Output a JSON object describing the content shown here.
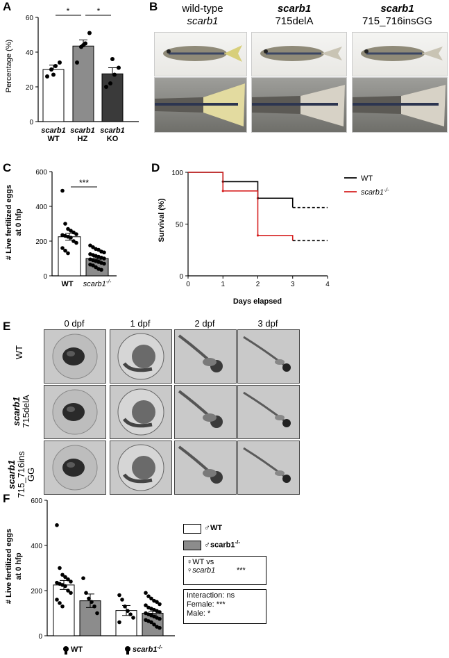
{
  "panels": {
    "a": {
      "letter": "A",
      "ylabel": "Percentage (%)",
      "yticks": [
        "0",
        "20",
        "40",
        "60"
      ],
      "groups": [
        {
          "line1": "scarb1",
          "line2": "WT"
        },
        {
          "line1": "scarb1",
          "line2": "HZ"
        },
        {
          "line1": "scarb1",
          "line2": "KO"
        }
      ],
      "sig": [
        "*",
        "*"
      ]
    },
    "b": {
      "letter": "B",
      "columns": [
        {
          "line1": "wild-type",
          "line2": "scarb1"
        },
        {
          "line1": "scarb1",
          "line2": "715delA"
        },
        {
          "line1": "scarb1",
          "line2": "715_716insGG"
        }
      ]
    },
    "c": {
      "letter": "C",
      "ylabel1": "# Live fertilized eggs",
      "ylabel2": "at 0 hfp",
      "yticks": [
        "0",
        "200",
        "400",
        "600"
      ],
      "xlabels": [
        "WT",
        "scarb1",
        "-/-"
      ],
      "sig": "***"
    },
    "d": {
      "letter": "D",
      "ylabel": "Survival  (%)",
      "xlabel": "Days elapsed",
      "yticks": [
        "0",
        "50",
        "100"
      ],
      "xticks": [
        "0",
        "1",
        "2",
        "3",
        "4"
      ],
      "legend": [
        {
          "label": "WT",
          "sup": "",
          "color": "#000000"
        },
        {
          "label": "scarb1",
          "sup": "-/-",
          "color": "#d62020"
        }
      ]
    },
    "e": {
      "letter": "E",
      "times": [
        "0 dpf",
        "1 dpf",
        "2 dpf",
        "3 dpf"
      ],
      "rows": [
        {
          "line1": "WT",
          "line2": ""
        },
        {
          "line1": "scarb1",
          "line2": "715delA"
        },
        {
          "line1": "scarb1",
          "line2": "715_716ins",
          "line3": "GG"
        }
      ]
    },
    "f": {
      "letter": "F",
      "ylabel1": "# Live fertilized eggs",
      "ylabel2": "at 0 hfp",
      "yticks": [
        "0",
        "200",
        "400",
        "600"
      ],
      "groups": [
        {
          "label": "WT",
          "italic": false,
          "sup": ""
        },
        {
          "label": "scarb1",
          "italic": true,
          "sup": "-/-"
        }
      ],
      "legend": [
        {
          "label": "WT",
          "sup": "",
          "fill": "#ffffff"
        },
        {
          "label": "scarb1",
          "sup": "-/-",
          "fill": "#8c8c8c"
        }
      ],
      "stats1_a": "♀WT vs",
      "stats1_b": "♀scarb1",
      "stats1_sig": "***",
      "stats2": [
        "Interaction: ns",
        "Female:  ***",
        "Male: *"
      ]
    }
  },
  "chart_data": [
    {
      "type": "bar",
      "panel": "A",
      "ylabel": "Percentage (%)",
      "ylim": [
        0,
        60
      ],
      "categories": [
        "scarb1 WT",
        "scarb1 HZ",
        "scarb1 KO"
      ],
      "values": [
        30,
        43.5,
        27.5
      ],
      "sem": [
        2.5,
        3.5,
        3.5
      ],
      "points": [
        [
          26,
          30,
          32,
          34,
          27
        ],
        [
          34,
          43,
          45,
          51,
          44
        ],
        [
          20,
          22,
          27,
          31,
          36
        ]
      ]
    },
    {
      "type": "bar",
      "panel": "C",
      "ylabel": "# Live fertilized eggs at 0 hfp",
      "ylim": [
        0,
        600
      ],
      "categories": [
        "WT",
        "scarb1-/-"
      ],
      "values": [
        225,
        100
      ],
      "sem": [
        20,
        8
      ],
      "points": [
        [
          490,
          300,
          270,
          260,
          250,
          240,
          235,
          230,
          225,
          220,
          200,
          190,
          160,
          145,
          130
        ],
        [
          175,
          165,
          155,
          150,
          140,
          135,
          125,
          120,
          115,
          110,
          105,
          100,
          95,
          90,
          85,
          80,
          75,
          70,
          65,
          60,
          50,
          40,
          35
        ]
      ]
    },
    {
      "type": "line",
      "panel": "D",
      "xlabel": "Days elapsed",
      "ylabel": "Survival (%)",
      "xlim": [
        0,
        4
      ],
      "ylim": [
        0,
        100
      ],
      "series": [
        {
          "name": "WT",
          "x": [
            0,
            1,
            1,
            2,
            2,
            3,
            3
          ],
          "y": [
            100,
            100,
            91,
            91,
            75,
            75,
            66
          ]
        },
        {
          "name": "scarb1-/-",
          "x": [
            0,
            1,
            1,
            2,
            2,
            3,
            3
          ],
          "y": [
            100,
            100,
            82,
            82,
            39,
            39,
            34
          ]
        }
      ]
    },
    {
      "type": "bar",
      "panel": "F",
      "ylabel": "# Live fertilized eggs at 0 hfp",
      "ylim": [
        0,
        600
      ],
      "categories": [
        "WT",
        "scarb1-/-"
      ],
      "series": [
        {
          "name": "WT",
          "values": [
            225,
            112
          ],
          "sem": [
            20,
            22
          ]
        },
        {
          "name": "scarb1-/-",
          "values": [
            155,
            100
          ],
          "sem": [
            30,
            8
          ]
        }
      ],
      "points": {
        "WT_WT": [
          490,
          300,
          270,
          260,
          250,
          240,
          235,
          230,
          225,
          220,
          200,
          190,
          160,
          145,
          130
        ],
        "WT_KO": [
          255,
          190,
          165,
          150,
          130,
          100
        ],
        "KO_WT": [
          180,
          160,
          130,
          110,
          95,
          80,
          60
        ],
        "KO_KO": [
          190,
          175,
          165,
          155,
          150,
          140,
          135,
          125,
          120,
          115,
          110,
          105,
          100,
          95,
          90,
          85,
          80,
          75,
          70,
          65,
          60,
          50,
          40,
          35
        ]
      }
    }
  ]
}
